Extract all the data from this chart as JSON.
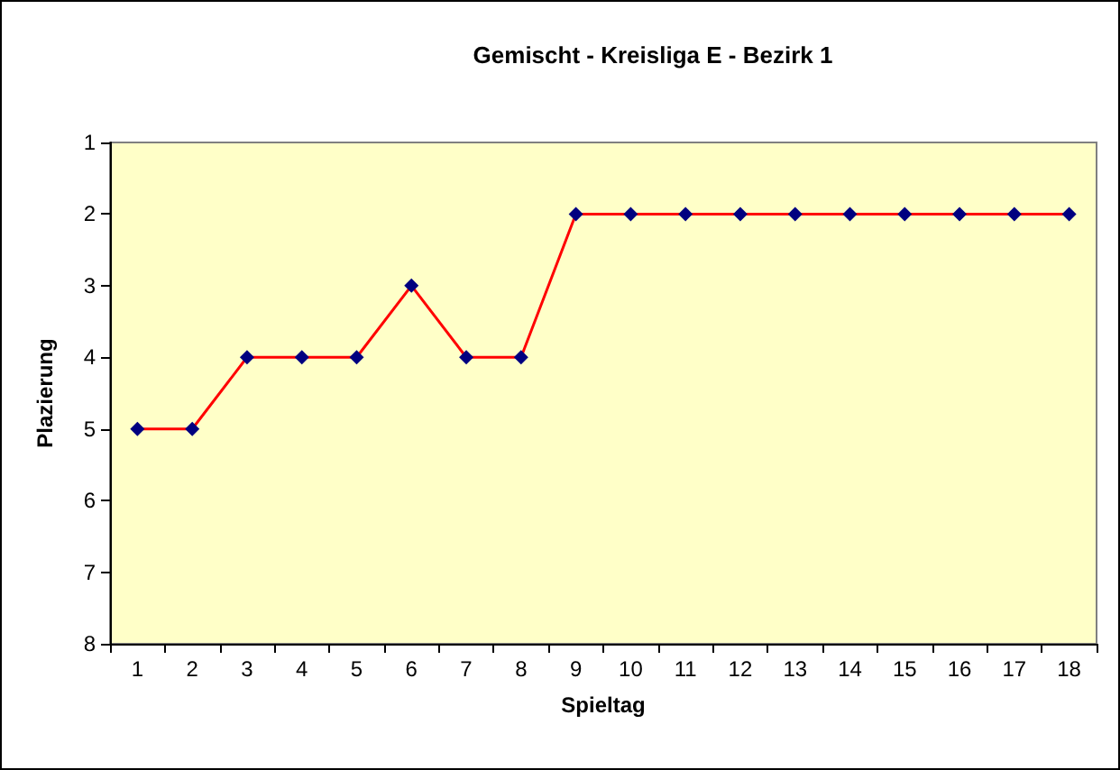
{
  "chart_data": {
    "type": "line",
    "title": "Gemischt - Kreisliga E - Bezirk 1",
    "xlabel": "Spieltag",
    "ylabel": "Plazierung",
    "categories": [
      "1",
      "2",
      "3",
      "4",
      "5",
      "6",
      "7",
      "8",
      "9",
      "10",
      "11",
      "12",
      "13",
      "14",
      "15",
      "16",
      "17",
      "18"
    ],
    "series": [
      {
        "color": "#ff0000",
        "colors": [
          "#000080",
          "#000080",
          "#000080",
          "#000080",
          "#000080",
          "#000080",
          "#000080",
          "#000080",
          "#000080",
          "#000080",
          "#000080",
          "#000080",
          "#000080",
          "#000080",
          "#000080",
          "#000080",
          "#000080",
          "#000080"
        ],
        "values": [
          5,
          5,
          4,
          4,
          4,
          3,
          4,
          4,
          2,
          2,
          2,
          2,
          2,
          2,
          2,
          2,
          2,
          2
        ]
      }
    ],
    "ylim": [
      8,
      1
    ],
    "yticks": [
      1,
      2,
      3,
      4,
      5,
      6,
      7,
      8
    ],
    "grid": false,
    "marker": "diamond",
    "line_style": "solid"
  }
}
